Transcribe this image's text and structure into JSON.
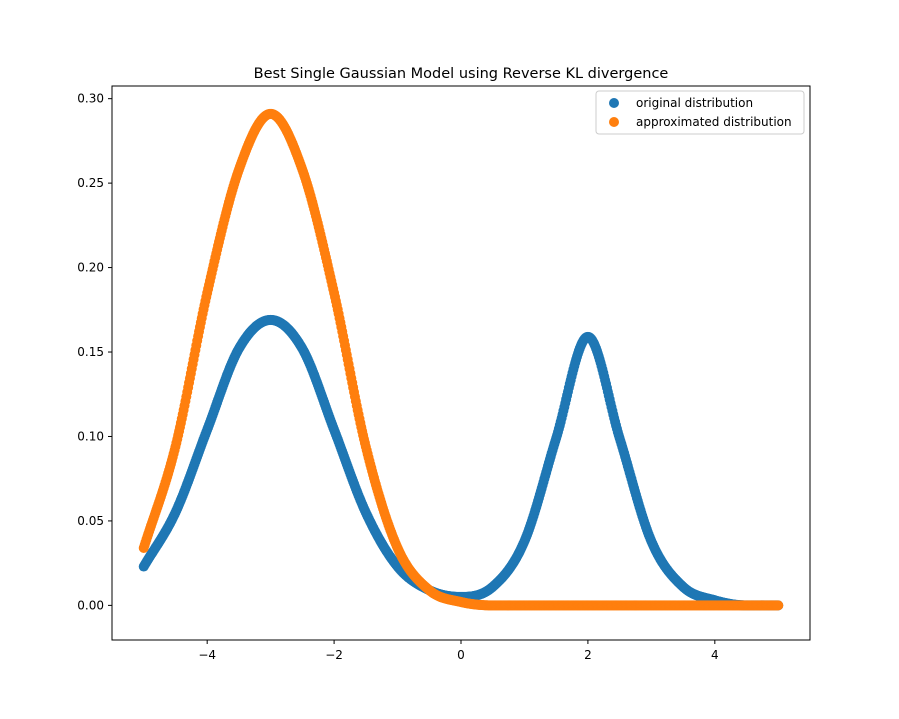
{
  "chart_data": {
    "type": "scatter",
    "title": "Best Single Gaussian Model using Reverse KL divergence",
    "xlabel": "",
    "ylabel": "",
    "xlim": [
      -5.5,
      5.5
    ],
    "ylim": [
      -0.0205,
      0.3075
    ],
    "xticks": [
      -4,
      -2,
      0,
      2,
      4
    ],
    "xtick_labels": [
      "−4",
      "−2",
      "0",
      "2",
      "4"
    ],
    "yticks": [
      0.0,
      0.05,
      0.1,
      0.15,
      0.2,
      0.25,
      0.3
    ],
    "ytick_labels": [
      "0.00",
      "0.05",
      "0.10",
      "0.15",
      "0.20",
      "0.25",
      "0.30"
    ],
    "grid": false,
    "legend_position": "top-right",
    "x_range": [
      -5,
      5
    ],
    "series": [
      {
        "name": "original distribution",
        "color": "#1f77b4",
        "x": [
          -5.0,
          -4.5,
          -4.0,
          -3.5,
          -3.0,
          -2.5,
          -2.0,
          -1.5,
          -1.0,
          -0.5,
          0.0,
          0.5,
          1.0,
          1.5,
          2.0,
          2.5,
          3.0,
          3.5,
          4.0,
          4.5,
          5.0
        ],
        "y": [
          0.023,
          0.055,
          0.104,
          0.152,
          0.169,
          0.152,
          0.104,
          0.055,
          0.023,
          0.009,
          0.005,
          0.011,
          0.038,
          0.099,
          0.159,
          0.099,
          0.038,
          0.011,
          0.003,
          0.0,
          0.0
        ]
      },
      {
        "name": "approximated distribution",
        "color": "#ff7f0e",
        "x": [
          -5.0,
          -4.5,
          -4.0,
          -3.5,
          -3.0,
          -2.5,
          -2.0,
          -1.5,
          -1.0,
          -0.5,
          0.0,
          0.5,
          1.0,
          1.5,
          2.0,
          2.5,
          3.0,
          3.5,
          4.0,
          4.5,
          5.0
        ],
        "y": [
          0.034,
          0.094,
          0.185,
          0.258,
          0.291,
          0.258,
          0.185,
          0.094,
          0.034,
          0.009,
          0.002,
          0.0,
          0.0,
          0.0,
          0.0,
          0.0,
          0.0,
          0.0,
          0.0,
          0.0,
          0.0
        ]
      }
    ]
  }
}
